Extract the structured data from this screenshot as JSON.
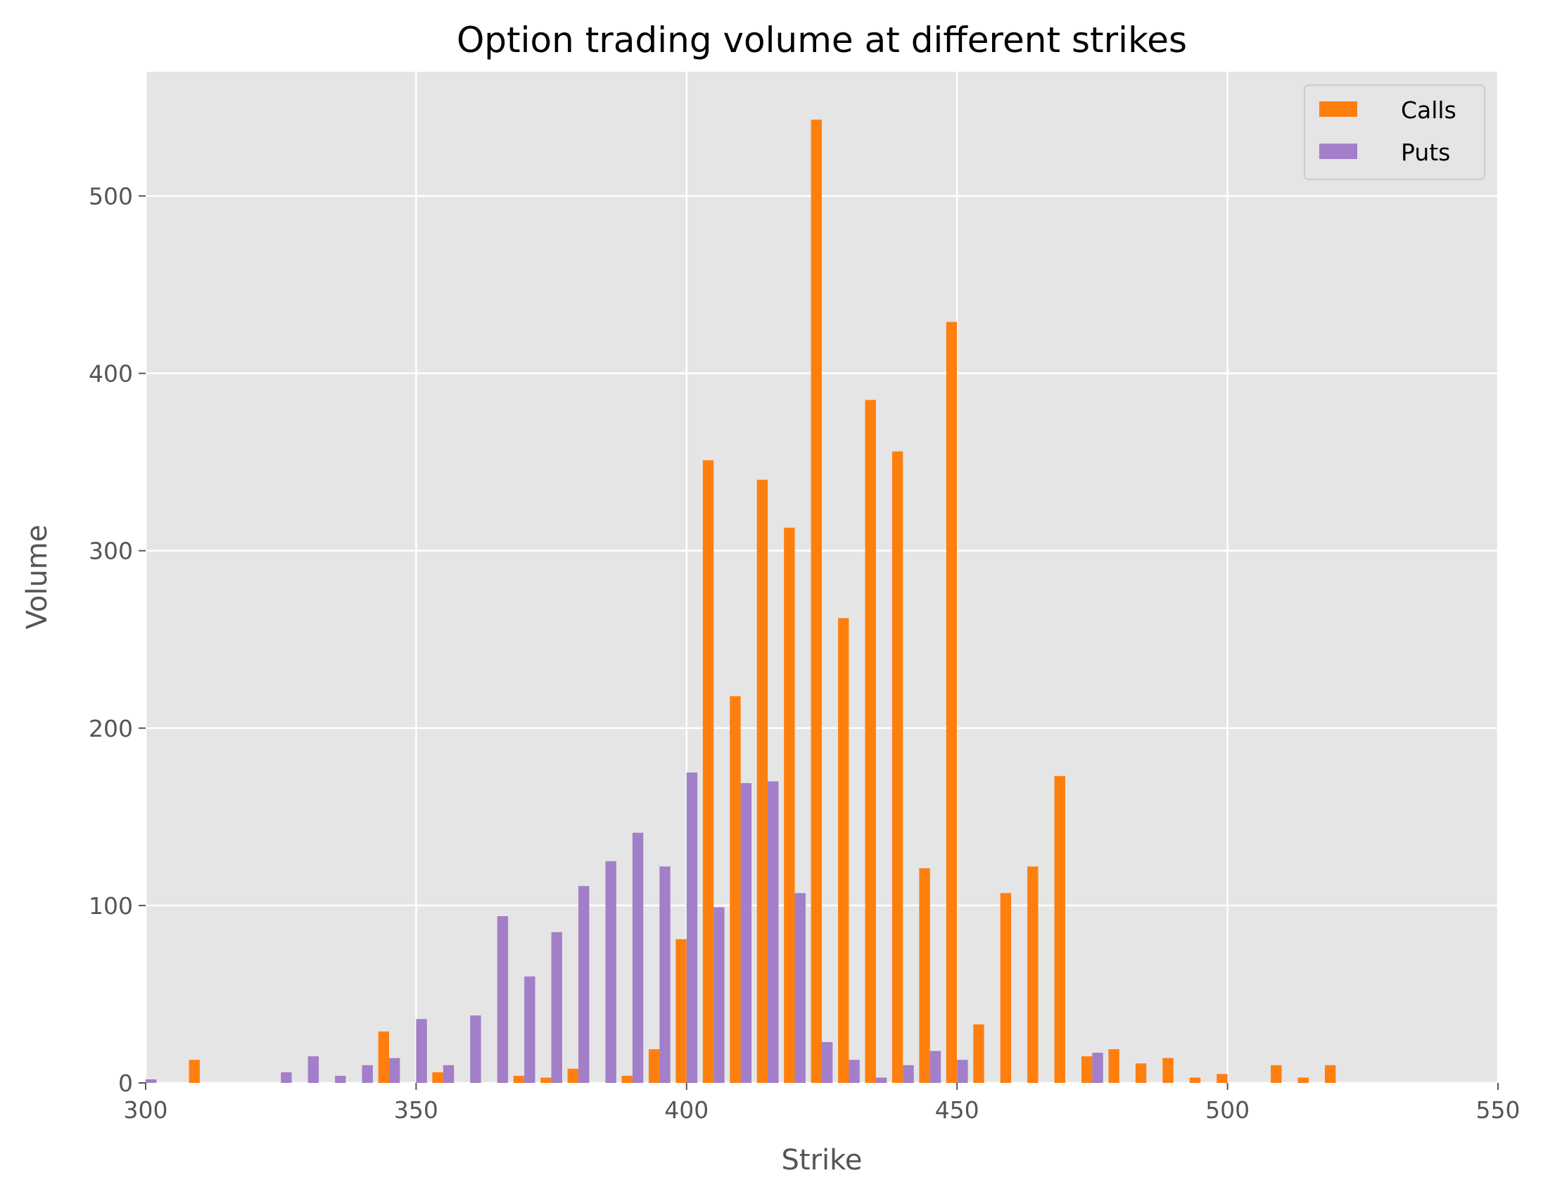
{
  "chart_data": {
    "type": "bar",
    "title": "Option trading volume at different strikes",
    "xlabel": "Strike",
    "ylabel": "Volume",
    "xlim": [
      300,
      550
    ],
    "ylim": [
      0,
      570
    ],
    "xticks": [
      300,
      350,
      400,
      450,
      500,
      550
    ],
    "yticks": [
      0,
      100,
      200,
      300,
      400,
      500
    ],
    "grid": true,
    "legend_position": "top-right",
    "background": "#e5e5e5",
    "series": [
      {
        "name": "Calls",
        "color": "#ff7f0e",
        "points": [
          [
            310,
            13
          ],
          [
            345,
            29
          ],
          [
            355,
            6
          ],
          [
            370,
            4
          ],
          [
            375,
            3
          ],
          [
            380,
            8
          ],
          [
            390,
            4
          ],
          [
            395,
            19
          ],
          [
            400,
            81
          ],
          [
            405,
            351
          ],
          [
            410,
            218
          ],
          [
            415,
            340
          ],
          [
            420,
            313
          ],
          [
            425,
            543
          ],
          [
            430,
            262
          ],
          [
            435,
            385
          ],
          [
            440,
            356
          ],
          [
            445,
            121
          ],
          [
            450,
            429
          ],
          [
            455,
            33
          ],
          [
            460,
            107
          ],
          [
            465,
            122
          ],
          [
            470,
            173
          ],
          [
            475,
            15
          ],
          [
            480,
            19
          ],
          [
            485,
            11
          ],
          [
            490,
            14
          ],
          [
            495,
            3
          ],
          [
            500,
            5
          ],
          [
            510,
            10
          ],
          [
            515,
            3
          ],
          [
            520,
            10
          ]
        ]
      },
      {
        "name": "Puts",
        "color": "#a27fc8",
        "points": [
          [
            300,
            2
          ],
          [
            325,
            6
          ],
          [
            330,
            15
          ],
          [
            335,
            4
          ],
          [
            340,
            10
          ],
          [
            345,
            14
          ],
          [
            350,
            36
          ],
          [
            355,
            10
          ],
          [
            360,
            38
          ],
          [
            365,
            94
          ],
          [
            370,
            60
          ],
          [
            375,
            85
          ],
          [
            380,
            111
          ],
          [
            385,
            125
          ],
          [
            390,
            141
          ],
          [
            395,
            122
          ],
          [
            400,
            175
          ],
          [
            405,
            99
          ],
          [
            410,
            169
          ],
          [
            415,
            170
          ],
          [
            420,
            107
          ],
          [
            425,
            23
          ],
          [
            430,
            13
          ],
          [
            435,
            3
          ],
          [
            440,
            10
          ],
          [
            445,
            18
          ],
          [
            450,
            13
          ],
          [
            475,
            17
          ]
        ]
      }
    ]
  }
}
